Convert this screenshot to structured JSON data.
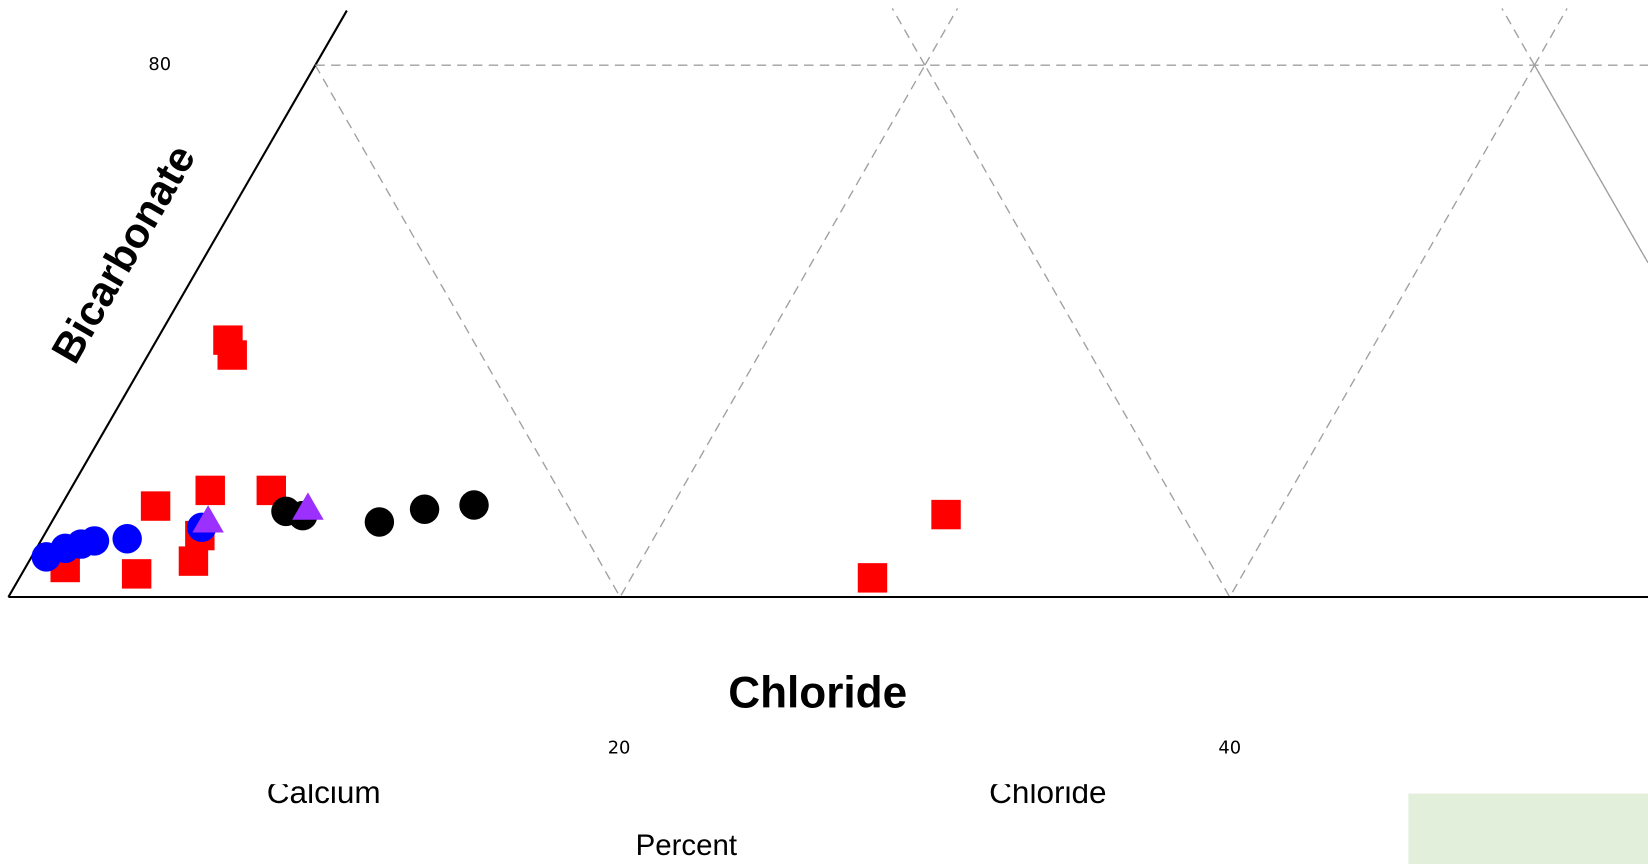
{
  "chart_data": {
    "type": "scatter",
    "x_label": "Chloride",
    "y_label": "Bicarbonate",
    "bottom_labels": [
      "Calcium",
      "Chloride"
    ],
    "footer": "Percent",
    "xlim": [
      0,
      53.7
    ],
    "ylim": [
      100,
      80
    ],
    "xticks": [
      20,
      40
    ],
    "yticks": [
      80
    ],
    "grid": true,
    "series": [
      {
        "color": "#ff0000",
        "marker": "square",
        "x": [
          7.19,
          7.33,
          4.82,
          6.61,
          8.61,
          1.86,
          4.2,
          6.06,
          6.27,
          30.71,
          28.3
        ],
        "y": [
          90.34,
          90.9,
          96.58,
          95.99,
          95.99,
          98.89,
          99.13,
          98.65,
          97.69,
          96.9,
          99.28
        ]
      },
      {
        "color": "#0000ff",
        "marker": "circle",
        "x": [
          1.24,
          1.86,
          2.38,
          2.82,
          3.89,
          6.33
        ],
        "y": [
          98.49,
          98.17,
          98.01,
          97.89,
          97.81,
          97.38
        ]
      },
      {
        "color": "#000000",
        "marker": "circle",
        "x": [
          9.09,
          9.64,
          12.15,
          13.63,
          15.25
        ],
        "y": [
          96.78,
          96.94,
          97.18,
          96.7,
          96.54
        ]
      },
      {
        "color": "#9b30ff",
        "marker": "triangle",
        "x": [
          6.54,
          9.81
        ],
        "y": [
          97.14,
          96.66
        ]
      }
    ]
  }
}
